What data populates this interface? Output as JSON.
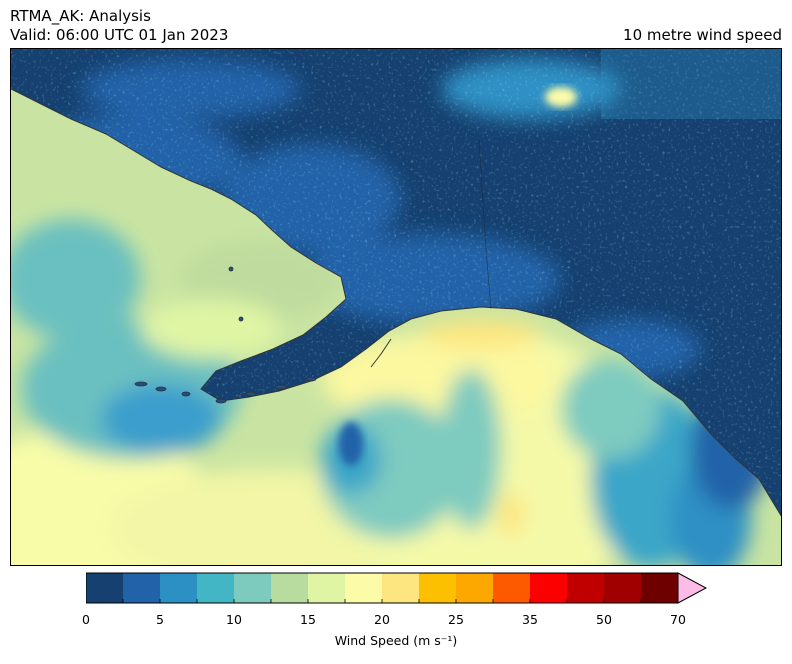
{
  "header": {
    "title_line1": "RTMA_AK: Analysis",
    "title_line2": "Valid: 06:00 UTC 01 Jan 2023",
    "field_name": "10 metre wind speed"
  },
  "map": {
    "region": "Alaska and North Pacific",
    "field": "10 m wind speed",
    "colors": {
      "ocean_high": "#dcf0a0",
      "land_low": "#14406f",
      "coastline": "#333333"
    }
  },
  "colorbar": {
    "label": "Wind Speed (m s⁻¹)",
    "bounds": [
      0,
      2.5,
      5,
      7.5,
      10,
      12.5,
      15,
      17.5,
      20,
      22.5,
      25,
      30,
      35,
      40,
      50,
      60,
      70
    ],
    "colors": [
      "#15406f",
      "#2262a8",
      "#2d90c4",
      "#43b6c6",
      "#7ccbbe",
      "#b8dca0",
      "#dff5a4",
      "#fcfca8",
      "#fde680",
      "#fdc000",
      "#fda800",
      "#fd5a00",
      "#fc0000",
      "#c00000",
      "#a00000",
      "#6e0000",
      "#fcbce6"
    ],
    "ticks": [
      {
        "value": 0,
        "label": "0"
      },
      {
        "value": 5,
        "label": "5"
      },
      {
        "value": 10,
        "label": "10"
      },
      {
        "value": 15,
        "label": "15"
      },
      {
        "value": 20,
        "label": "20"
      },
      {
        "value": 25,
        "label": "25"
      },
      {
        "value": 35,
        "label": "35"
      },
      {
        "value": 50,
        "label": "50"
      },
      {
        "value": 70,
        "label": "70"
      }
    ],
    "extend": "max"
  }
}
